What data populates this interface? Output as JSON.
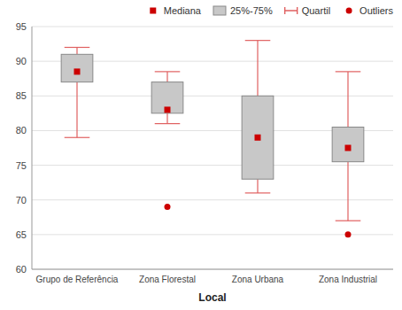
{
  "chart_data": {
    "type": "box",
    "categories": [
      "Grupo de Referência",
      "Zona Florestal",
      "Zona Urbana",
      "Zona Industrial"
    ],
    "series": [
      {
        "name": "Mediana",
        "color": "#cc0000",
        "marker": "square",
        "values": [
          88.5,
          83.0,
          79.0,
          77.5
        ]
      },
      {
        "name": "25%-75%",
        "color": "#c8c8c8",
        "q1": [
          87.0,
          82.5,
          73.0,
          75.5
        ],
        "q3": [
          91.0,
          87.0,
          85.0,
          80.5
        ]
      },
      {
        "name": "Quartil",
        "color": "#e06060",
        "whisker_low": [
          79.0,
          81.0,
          71.0,
          67.0
        ],
        "whisker_high": [
          92.0,
          88.5,
          93.0,
          88.5
        ]
      },
      {
        "name": "Outliers",
        "color": "#cc0000",
        "marker": "circle",
        "values": [
          [],
          [
            69.0
          ],
          [],
          [
            65.0
          ]
        ]
      }
    ],
    "xlabel": "Local",
    "ylim": [
      60,
      95
    ],
    "yticks": [
      60,
      65,
      70,
      75,
      80,
      85,
      90,
      95
    ],
    "grid": true,
    "legend": "top"
  }
}
